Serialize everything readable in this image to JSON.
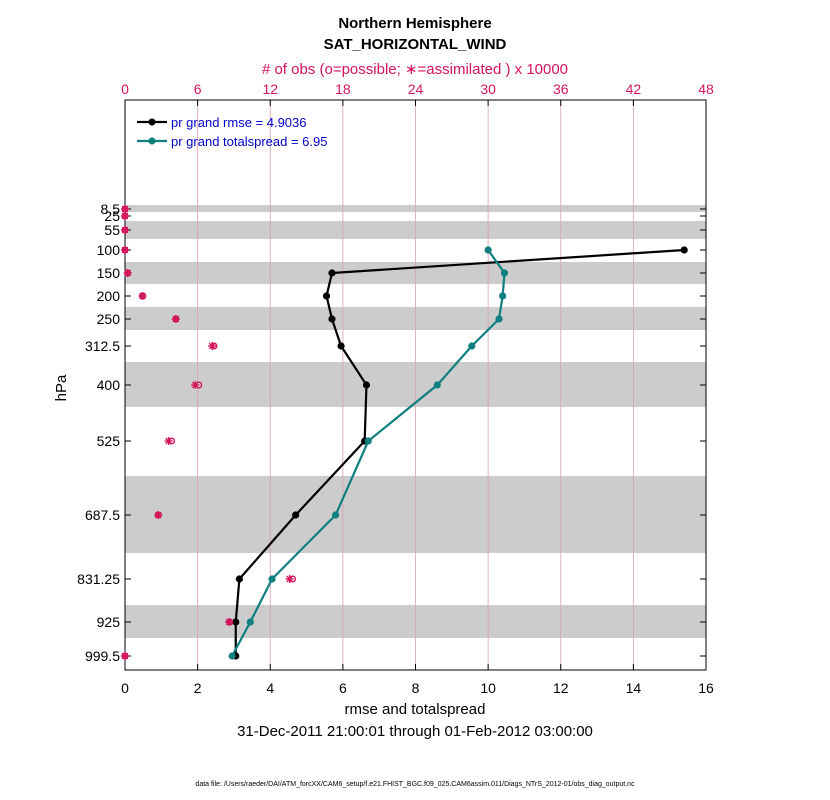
{
  "chart_data": {
    "type": "line",
    "title": "Northern Hemisphere",
    "subtitle": "SAT_HORIZONTAL_WIND",
    "top_axis_label": "# of obs (o=possible; ∗=assimilated ) x 10000",
    "xlabel": "rmse and totalspread",
    "ylabel": "hPa",
    "date_range": "31-Dec-2011 21:00:01 through 01-Feb-2012 03:00:00",
    "footnote": "data file: /Users/raeder/DAI/ATM_forcXX/CAM6_setup/f.e21.FHIST_BGC.f09_025.CAM6assim.011/Diags_NTrS_2012-01/obs_diag_output.nc",
    "xlim": [
      0,
      16
    ],
    "top_xlim": [
      0,
      48
    ],
    "x_ticks": [
      "0",
      "2",
      "4",
      "6",
      "8",
      "10",
      "12",
      "14",
      "16"
    ],
    "top_ticks": [
      "0",
      "6",
      "12",
      "18",
      "24",
      "30",
      "36",
      "42",
      "48"
    ],
    "levels": [
      "8.5",
      "25",
      "55",
      "100",
      "150",
      "200",
      "250",
      "312.5",
      "400",
      "525",
      "687.5",
      "831.25",
      "925",
      "999.5"
    ],
    "series": [
      {
        "name": "pr grand rmse = 4.9036",
        "color": "#000000",
        "values": [
          null,
          null,
          null,
          15.4,
          5.7,
          5.55,
          5.7,
          5.95,
          6.65,
          6.6,
          4.7,
          3.15,
          3.05,
          3.05
        ]
      },
      {
        "name": "pr grand totalspread = 6.95",
        "color": "#0f7f7f",
        "values": [
          null,
          null,
          null,
          10.0,
          10.45,
          10.4,
          10.3,
          9.55,
          8.6,
          6.7,
          5.8,
          4.05,
          3.45,
          2.95
        ]
      }
    ],
    "obs_possible": [
      0.0,
      0.0,
      0.0,
      0.0,
      0.22,
      1.45,
      4.2,
      7.35,
      6.1,
      3.85,
      2.75,
      13.85,
      8.65,
      0.0
    ],
    "obs_assimilated": [
      0.0,
      0.0,
      0.0,
      0.0,
      0.22,
      1.45,
      4.2,
      7.2,
      5.8,
      3.6,
      2.75,
      13.6,
      8.6,
      0.0
    ],
    "obs_color": "#d4145a"
  }
}
